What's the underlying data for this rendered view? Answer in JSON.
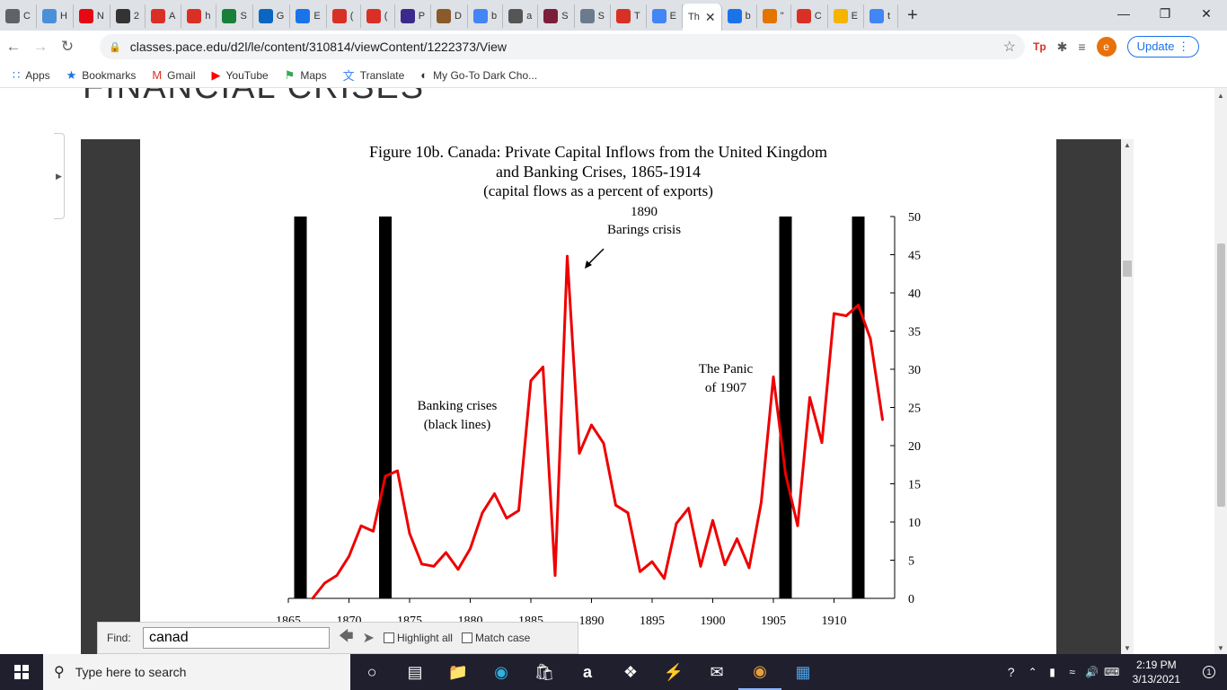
{
  "tabs": [
    {
      "letter": "C",
      "color": "#5f6368",
      "icon": "globe-icon"
    },
    {
      "letter": "H",
      "color": "#4a90d9",
      "icon": "pencil-icon"
    },
    {
      "letter": "N",
      "color": "#e50914",
      "icon": "netflix-icon"
    },
    {
      "letter": "2",
      "color": "#333333",
      "icon": "circle-icon"
    },
    {
      "letter": "A",
      "color": "#d93025",
      "icon": "gmail-icon"
    },
    {
      "letter": "h",
      "color": "#d93025",
      "icon": "check-icon"
    },
    {
      "letter": "S",
      "color": "#188038",
      "icon": "plus-icon"
    },
    {
      "letter": "G",
      "color": "#0a66c2",
      "icon": "outlook-icon"
    },
    {
      "letter": "E",
      "color": "#1a73e8",
      "icon": "drive-icon"
    },
    {
      "letter": "(",
      "color": "#d93025",
      "icon": "h-icon"
    },
    {
      "letter": "(",
      "color": "#d93025",
      "icon": "h-icon"
    },
    {
      "letter": "P",
      "color": "#3b2a8a",
      "icon": "p-icon"
    },
    {
      "letter": "D",
      "color": "#8a5a2b",
      "icon": "deer-icon"
    },
    {
      "letter": "b",
      "color": "#4285f4",
      "icon": "google-icon"
    },
    {
      "letter": "a",
      "color": "#555555",
      "icon": "image-icon"
    },
    {
      "letter": "S",
      "color": "#7b1e3a",
      "icon": "edit-icon"
    },
    {
      "letter": "S",
      "color": "#6b7b8c",
      "icon": "seal-icon"
    },
    {
      "letter": "T",
      "color": "#d93025",
      "icon": "check-icon"
    },
    {
      "letter": "E",
      "color": "#4285f4",
      "icon": "docs-icon"
    },
    {
      "letter": "Th",
      "color": "#ffffff",
      "icon": "",
      "active": true
    },
    {
      "letter": "b",
      "color": "#1a73e8",
      "icon": "diamond-icon"
    },
    {
      "letter": "\"",
      "color": "#e37400",
      "icon": "s-icon"
    },
    {
      "letter": "C",
      "color": "#d93025",
      "icon": "book-icon"
    },
    {
      "letter": "E",
      "color": "#f4b400",
      "icon": "e-icon"
    },
    {
      "letter": "t",
      "color": "#4285f4",
      "icon": "google-icon"
    }
  ],
  "new_tab_label": "+",
  "url": "classes.pace.edu/d2l/le/content/310814/viewContent/1222373/View",
  "profile_initial": "e",
  "update_label": "Update",
  "bookmarks": [
    {
      "label": "Apps",
      "icon": "apps-grid-icon"
    },
    {
      "label": "Bookmarks",
      "icon": "star-icon"
    },
    {
      "label": "Gmail",
      "icon": "gmail-icon"
    },
    {
      "label": "YouTube",
      "icon": "youtube-icon"
    },
    {
      "label": "Maps",
      "icon": "maps-icon"
    },
    {
      "label": "Translate",
      "icon": "translate-icon"
    },
    {
      "label": "My Go-To Dark Cho...",
      "icon": "bookmark-globe-icon"
    }
  ],
  "page_title": "FINANCIAL CRISES",
  "chart_data": {
    "type": "line",
    "title": "Figure 10b.  Canada: Private Capital Inflows from the United Kingdom",
    "title_line2": "and Banking Crises, 1865-1914",
    "subtitle": "(capital flows as a percent of exports)",
    "x_ticks": [
      1865,
      1870,
      1875,
      1880,
      1885,
      1890,
      1895,
      1900,
      1905,
      1910
    ],
    "y_ticks": [
      0,
      5,
      10,
      15,
      20,
      25,
      30,
      35,
      40,
      45,
      50
    ],
    "xlim": [
      1865,
      1915
    ],
    "ylim": [
      0,
      50
    ],
    "y_axis_side": "right",
    "crisis_years": [
      1866,
      1873,
      1906,
      1912
    ],
    "series": [
      {
        "color": "#ee0000",
        "x": [
          1867,
          1868,
          1869,
          1870,
          1871,
          1872,
          1873,
          1874,
          1875,
          1876,
          1877,
          1878,
          1879,
          1880,
          1881,
          1882,
          1883,
          1884,
          1885,
          1886,
          1887,
          1888,
          1889,
          1890,
          1891,
          1892,
          1893,
          1894,
          1895,
          1896,
          1897,
          1898,
          1899,
          1900,
          1901,
          1902,
          1903,
          1904,
          1905,
          1906,
          1907,
          1908,
          1909,
          1910,
          1911,
          1912,
          1913,
          1914
        ],
        "y": [
          0,
          2,
          3,
          5.5,
          9.5,
          8.8,
          16,
          16.7,
          8.5,
          4.5,
          4.2,
          6,
          3.8,
          6.5,
          11.2,
          13.7,
          10.5,
          11.5,
          28.5,
          30.3,
          3,
          44.8,
          19,
          22.7,
          20.3,
          12.2,
          11.2,
          3.5,
          4.8,
          2.6,
          9.8,
          11.8,
          4.2,
          10.2,
          4.4,
          7.8,
          4,
          12.6,
          29,
          16.3,
          9.5,
          26.3,
          20.4,
          37.3,
          37,
          38.4,
          34,
          23.4
        ]
      }
    ],
    "annotations": [
      {
        "text": "1890",
        "text2": "Barings crisis"
      },
      {
        "text": "Banking crises",
        "text2": "(black lines)"
      },
      {
        "text": "The Panic",
        "text2": "of 1907"
      }
    ]
  },
  "find_bar": {
    "label": "Find:",
    "value": "canad",
    "highlight_all": "Highlight all",
    "match_case": "Match case"
  },
  "taskbar": {
    "search_placeholder": "Type here to search",
    "time": "2:19 PM",
    "date": "3/13/2021",
    "notification_count": "1"
  }
}
